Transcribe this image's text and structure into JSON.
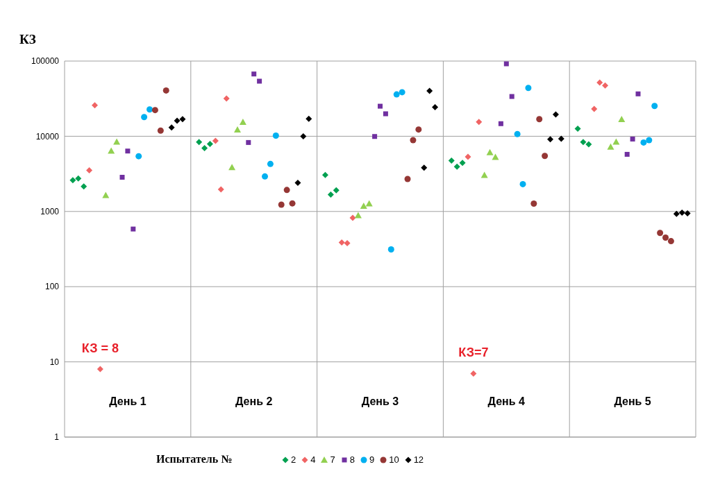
{
  "chart_data": {
    "type": "scatter",
    "ylabel": "КЗ",
    "xlabel": "Испытатель №",
    "categories": [
      null,
      null,
      null,
      null,
      null,
      null,
      null,
      null,
      null,
      null,
      null,
      null,
      null,
      null,
      null,
      null,
      null,
      null,
      null,
      null,
      null,
      null,
      null,
      null,
      null,
      null,
      null,
      null,
      null,
      null,
      null,
      null,
      null,
      null,
      null,
      null,
      null,
      null,
      null,
      null,
      null,
      null,
      null,
      null,
      null,
      null,
      null,
      null,
      null,
      null,
      null,
      null,
      null,
      null,
      null,
      null,
      null,
      null,
      null,
      null,
      null,
      null,
      null,
      null,
      null,
      null,
      null,
      null,
      null,
      null,
      null,
      null,
      null,
      null,
      null,
      null,
      null,
      null,
      null,
      null,
      null,
      null,
      null,
      null,
      null,
      null,
      null,
      null,
      null,
      null,
      null,
      null,
      null,
      null,
      null,
      null,
      null,
      null,
      null,
      null,
      null,
      null,
      null,
      null,
      null,
      null,
      null,
      null,
      null,
      null,
      null,
      null,
      null,
      null,
      null
    ],
    "series": [
      {
        "name": "2",
        "color": "#00a050",
        "marker": "diamond",
        "values": [
          null,
          2600,
          2740,
          2150,
          null,
          null,
          null,
          null,
          null,
          null,
          null,
          null,
          null,
          null,
          null,
          null,
          null,
          null,
          null,
          null,
          null,
          null,
          null,
          null,
          8380,
          6970,
          7910,
          null,
          null,
          null,
          null,
          null,
          null,
          null,
          null,
          null,
          null,
          null,
          null,
          null,
          null,
          null,
          null,
          null,
          null,
          null,
          null,
          3060,
          1680,
          1910,
          null,
          null,
          null,
          null,
          null,
          null,
          null,
          null,
          null,
          null,
          null,
          null,
          null,
          null,
          null,
          null,
          null,
          null,
          null,
          null,
          4750,
          3930,
          4430,
          null,
          null,
          null,
          null,
          null,
          null,
          null,
          null,
          null,
          null,
          null,
          null,
          null,
          null,
          null,
          null,
          null,
          null,
          null,
          null,
          12600,
          8380,
          7800,
          null,
          null,
          null,
          null,
          null,
          null,
          null,
          null,
          null,
          null,
          null,
          null,
          null,
          null,
          null,
          null,
          null,
          null,
          null
        ]
      },
      {
        "name": "4",
        "color": "#f06464",
        "marker": "diamond",
        "values": [
          null,
          null,
          null,
          null,
          3530,
          25800,
          8,
          null,
          null,
          null,
          null,
          null,
          null,
          null,
          null,
          null,
          null,
          null,
          null,
          null,
          null,
          null,
          null,
          null,
          null,
          null,
          null,
          8670,
          1960,
          31800,
          null,
          null,
          null,
          null,
          null,
          null,
          null,
          null,
          null,
          null,
          null,
          null,
          null,
          null,
          null,
          null,
          null,
          null,
          null,
          null,
          387,
          379,
          821,
          null,
          null,
          null,
          null,
          null,
          null,
          null,
          null,
          null,
          null,
          null,
          null,
          null,
          null,
          null,
          null,
          null,
          null,
          null,
          null,
          5320,
          7,
          15500,
          null,
          null,
          null,
          null,
          null,
          null,
          null,
          null,
          null,
          null,
          null,
          null,
          null,
          null,
          null,
          null,
          null,
          null,
          null,
          null,
          23100,
          51800,
          47200,
          null,
          null,
          null,
          null,
          null,
          null,
          null,
          null,
          null,
          null,
          null,
          null,
          null,
          null,
          null,
          null
        ]
      },
      {
        "name": "7",
        "color": "#92d050",
        "marker": "triangle",
        "values": [
          null,
          null,
          null,
          null,
          null,
          null,
          null,
          1640,
          6400,
          8430,
          null,
          null,
          null,
          null,
          null,
          null,
          null,
          null,
          null,
          null,
          null,
          null,
          null,
          null,
          null,
          null,
          null,
          null,
          null,
          null,
          3850,
          12200,
          15400,
          null,
          null,
          null,
          null,
          null,
          null,
          null,
          null,
          null,
          null,
          null,
          null,
          null,
          null,
          null,
          null,
          null,
          null,
          null,
          null,
          887,
          1180,
          1270,
          null,
          null,
          null,
          null,
          null,
          null,
          null,
          null,
          null,
          null,
          null,
          null,
          null,
          null,
          null,
          null,
          null,
          null,
          null,
          null,
          3040,
          6090,
          5290,
          null,
          null,
          null,
          null,
          null,
          null,
          null,
          null,
          null,
          null,
          null,
          null,
          null,
          null,
          null,
          null,
          null,
          null,
          null,
          null,
          7210,
          8430,
          16800,
          null,
          null,
          null,
          null,
          null,
          null,
          null,
          null,
          null,
          null,
          null,
          null,
          null
        ]
      },
      {
        "name": "8",
        "color": "#7030a0",
        "marker": "square",
        "values": [
          null,
          null,
          null,
          null,
          null,
          null,
          null,
          null,
          null,
          null,
          2850,
          6360,
          584,
          null,
          null,
          null,
          null,
          null,
          null,
          null,
          null,
          null,
          null,
          null,
          null,
          null,
          null,
          null,
          null,
          null,
          null,
          null,
          null,
          8260,
          67300,
          54000,
          null,
          null,
          null,
          null,
          null,
          null,
          null,
          null,
          null,
          null,
          null,
          null,
          null,
          null,
          null,
          null,
          null,
          null,
          null,
          null,
          9930,
          25100,
          19900,
          null,
          null,
          null,
          null,
          null,
          null,
          null,
          null,
          null,
          null,
          null,
          null,
          null,
          null,
          null,
          null,
          null,
          null,
          null,
          null,
          14700,
          91900,
          33800,
          null,
          null,
          null,
          null,
          null,
          null,
          null,
          null,
          null,
          null,
          null,
          null,
          null,
          null,
          null,
          null,
          null,
          null,
          null,
          null,
          5750,
          9180,
          36600,
          null,
          null,
          null,
          null,
          null,
          null,
          null,
          null,
          null,
          null
        ]
      },
      {
        "name": "9",
        "color": "#00b0f0",
        "marker": "circle",
        "values": [
          null,
          null,
          null,
          null,
          null,
          null,
          null,
          null,
          null,
          null,
          null,
          null,
          null,
          5430,
          18000,
          22700,
          null,
          null,
          null,
          null,
          null,
          null,
          null,
          null,
          null,
          null,
          null,
          null,
          null,
          null,
          null,
          null,
          null,
          null,
          null,
          null,
          2920,
          4280,
          10200,
          null,
          null,
          null,
          null,
          null,
          null,
          null,
          null,
          null,
          null,
          null,
          null,
          null,
          null,
          null,
          null,
          null,
          null,
          null,
          null,
          313,
          36000,
          38500,
          null,
          null,
          null,
          null,
          null,
          null,
          null,
          null,
          null,
          null,
          null,
          null,
          null,
          null,
          null,
          null,
          null,
          null,
          null,
          null,
          10700,
          2310,
          43900,
          null,
          null,
          null,
          null,
          null,
          null,
          null,
          null,
          null,
          null,
          null,
          null,
          null,
          null,
          null,
          null,
          null,
          null,
          null,
          null,
          8260,
          8870,
          25300,
          null,
          null,
          null,
          null,
          null,
          null,
          null
        ]
      },
      {
        "name": "10",
        "color": "#953735",
        "marker": "circle",
        "values": [
          null,
          null,
          null,
          null,
          null,
          null,
          null,
          null,
          null,
          null,
          null,
          null,
          null,
          null,
          null,
          null,
          22300,
          11900,
          40600,
          null,
          null,
          null,
          null,
          null,
          null,
          null,
          null,
          null,
          null,
          null,
          null,
          null,
          null,
          null,
          null,
          null,
          null,
          null,
          null,
          1230,
          1930,
          1280,
          null,
          null,
          null,
          null,
          null,
          null,
          null,
          null,
          null,
          null,
          null,
          null,
          null,
          null,
          null,
          null,
          null,
          null,
          null,
          null,
          2700,
          8870,
          12300,
          null,
          null,
          null,
          null,
          null,
          null,
          null,
          null,
          null,
          null,
          null,
          null,
          null,
          null,
          null,
          null,
          null,
          null,
          null,
          null,
          1270,
          16900,
          5470,
          null,
          null,
          null,
          null,
          null,
          null,
          null,
          null,
          null,
          null,
          null,
          null,
          null,
          null,
          null,
          null,
          null,
          null,
          null,
          null,
          518,
          449,
          403,
          null,
          null,
          null,
          null
        ]
      },
      {
        "name": "12",
        "color": "#000000",
        "marker": "diamond",
        "values": [
          null,
          null,
          null,
          null,
          null,
          null,
          null,
          null,
          null,
          null,
          null,
          null,
          null,
          null,
          null,
          null,
          null,
          null,
          null,
          13100,
          16100,
          16900,
          null,
          null,
          null,
          null,
          null,
          null,
          null,
          null,
          null,
          null,
          null,
          null,
          null,
          null,
          null,
          null,
          null,
          null,
          null,
          null,
          2410,
          10000,
          17100,
          null,
          null,
          null,
          null,
          null,
          null,
          null,
          null,
          null,
          null,
          null,
          null,
          null,
          null,
          null,
          null,
          null,
          null,
          null,
          null,
          3820,
          40100,
          24300,
          null,
          null,
          null,
          null,
          null,
          null,
          null,
          null,
          null,
          null,
          null,
          null,
          null,
          null,
          null,
          null,
          null,
          null,
          null,
          null,
          9120,
          19500,
          9250,
          null,
          null,
          null,
          null,
          null,
          null,
          null,
          null,
          null,
          null,
          null,
          null,
          null,
          null,
          null,
          null,
          null,
          null,
          null,
          null,
          931,
          966,
          944,
          null
        ]
      }
    ],
    "log": true,
    "ylim": [
      1,
      100000
    ],
    "yticks": [
      1,
      10,
      100,
      1000,
      10000,
      100000
    ],
    "grid": true,
    "legend": "bottom",
    "annotations": [
      {
        "text": "КЗ = 8",
        "y": 8
      },
      {
        "text": "КЗ=7",
        "y": 7
      },
      "День 1",
      "День 2",
      "День 3",
      "День 4",
      "День 5"
    ]
  }
}
